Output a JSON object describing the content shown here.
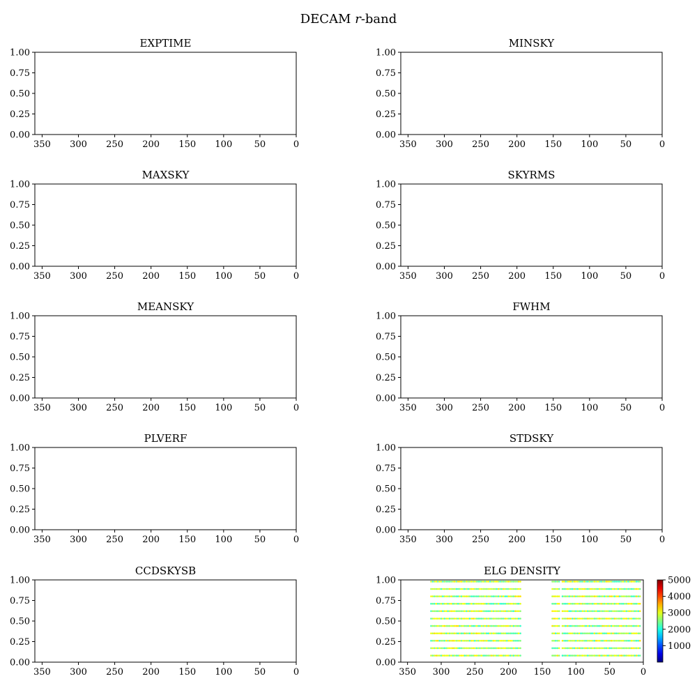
{
  "figure": {
    "suptitle_main": "DECAM ",
    "suptitle_italic": "r",
    "suptitle_rest": "-band"
  },
  "chart_data": [
    {
      "type": "scatter",
      "title": "EXPTIME",
      "xlim": [
        360,
        0
      ],
      "ylim": [
        0,
        1
      ],
      "xticks": [
        "350",
        "300",
        "250",
        "200",
        "150",
        "100",
        "50",
        "0"
      ],
      "yticks": [
        "0.00",
        "0.25",
        "0.50",
        "0.75",
        "1.00"
      ],
      "points": []
    },
    {
      "type": "scatter",
      "title": "MINSKY",
      "xlim": [
        360,
        0
      ],
      "ylim": [
        0,
        1
      ],
      "xticks": [
        "350",
        "300",
        "250",
        "200",
        "150",
        "100",
        "50",
        "0"
      ],
      "yticks": [
        "0.00",
        "0.25",
        "0.50",
        "0.75",
        "1.00"
      ],
      "points": []
    },
    {
      "type": "scatter",
      "title": "MAXSKY",
      "xlim": [
        360,
        0
      ],
      "ylim": [
        0,
        1
      ],
      "xticks": [
        "350",
        "300",
        "250",
        "200",
        "150",
        "100",
        "50",
        "0"
      ],
      "yticks": [
        "0.00",
        "0.25",
        "0.50",
        "0.75",
        "1.00"
      ],
      "points": []
    },
    {
      "type": "scatter",
      "title": "SKYRMS",
      "xlim": [
        360,
        0
      ],
      "ylim": [
        0,
        1
      ],
      "xticks": [
        "350",
        "300",
        "250",
        "200",
        "150",
        "100",
        "50",
        "0"
      ],
      "yticks": [
        "0.00",
        "0.25",
        "0.50",
        "0.75",
        "1.00"
      ],
      "points": []
    },
    {
      "type": "scatter",
      "title": "MEANSKY",
      "xlim": [
        360,
        0
      ],
      "ylim": [
        0,
        1
      ],
      "xticks": [
        "350",
        "300",
        "250",
        "200",
        "150",
        "100",
        "50",
        "0"
      ],
      "yticks": [
        "0.00",
        "0.25",
        "0.50",
        "0.75",
        "1.00"
      ],
      "points": []
    },
    {
      "type": "scatter",
      "title": "FWHM",
      "xlim": [
        360,
        0
      ],
      "ylim": [
        0,
        1
      ],
      "xticks": [
        "350",
        "300",
        "250",
        "200",
        "150",
        "100",
        "50",
        "0"
      ],
      "yticks": [
        "0.00",
        "0.25",
        "0.50",
        "0.75",
        "1.00"
      ],
      "points": []
    },
    {
      "type": "scatter",
      "title": "PLVERF",
      "xlim": [
        360,
        0
      ],
      "ylim": [
        0,
        1
      ],
      "xticks": [
        "350",
        "300",
        "250",
        "200",
        "150",
        "100",
        "50",
        "0"
      ],
      "yticks": [
        "0.00",
        "0.25",
        "0.50",
        "0.75",
        "1.00"
      ],
      "points": []
    },
    {
      "type": "scatter",
      "title": "STDSKY",
      "xlim": [
        360,
        0
      ],
      "ylim": [
        0,
        1
      ],
      "xticks": [
        "350",
        "300",
        "250",
        "200",
        "150",
        "100",
        "50",
        "0"
      ],
      "yticks": [
        "0.00",
        "0.25",
        "0.50",
        "0.75",
        "1.00"
      ],
      "points": []
    },
    {
      "type": "scatter",
      "title": "CCDSKYSB",
      "xlim": [
        360,
        0
      ],
      "ylim": [
        0,
        1
      ],
      "xticks": [
        "350",
        "300",
        "250",
        "200",
        "150",
        "100",
        "50",
        "0"
      ],
      "yticks": [
        "0.00",
        "0.25",
        "0.50",
        "0.75",
        "1.00"
      ],
      "points": []
    },
    {
      "type": "scatter",
      "title": "ELG DENSITY",
      "xlim": [
        360,
        0
      ],
      "ylim": [
        0,
        1
      ],
      "xticks": [
        "350",
        "300",
        "250",
        "200",
        "150",
        "100",
        "50",
        "0"
      ],
      "yticks": [
        "0.00",
        "0.25",
        "0.50",
        "0.75",
        "1.00"
      ],
      "colormap": "jet",
      "colorbar": {
        "vmin": 0,
        "vmax": 5000,
        "ticks": [
          "1000",
          "2000",
          "3000",
          "4000",
          "5000"
        ]
      },
      "point_rows": {
        "y": [
          0.08,
          0.17,
          0.26,
          0.35,
          0.44,
          0.53,
          0.62,
          0.71,
          0.8,
          0.89,
          0.98
        ],
        "segments": [
          [
            182,
            315
          ],
          [
            135,
            125
          ],
          [
            120,
            3
          ]
        ],
        "step": 2.5,
        "density_mean": 2700,
        "density_spread": 600
      }
    }
  ]
}
